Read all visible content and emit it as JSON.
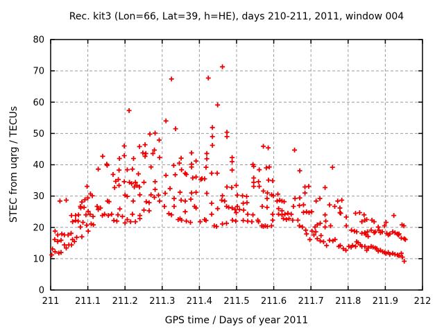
{
  "window": {
    "title": "Rec. kit3 (Lon=66, Lat=39, h=HE), days 210-211, 2011, window 004"
  },
  "chart_data": {
    "type": "scatter",
    "title": "Rec. kit3 (Lon=66, Lat=39, h=HE), days 210-211, 2011, window 004",
    "xlabel": "GPS time / Days of year 2011",
    "ylabel": "STEC from uqrg / TECUs",
    "xlim": [
      211,
      212
    ],
    "ylim": [
      0,
      80
    ],
    "xticks": [
      211,
      211.1,
      211.2,
      211.3,
      211.4,
      211.5,
      211.6,
      211.7,
      211.8,
      211.9,
      212
    ],
    "xtick_labels": [
      "211",
      "211.1",
      "211.2",
      "211.3",
      "211.4",
      "211.5",
      "211.6",
      "211.7",
      "211.8",
      "211.9",
      "212"
    ],
    "yticks": [
      0,
      10,
      20,
      30,
      40,
      50,
      60,
      70,
      80
    ],
    "ytick_labels": [
      "0",
      "10",
      "20",
      "30",
      "40",
      "50",
      "60",
      "70",
      "80"
    ],
    "grid": true,
    "legend": "none",
    "marker": "plus",
    "marker_color": "#ee0000",
    "marker_size": 7,
    "grid_color": "#9c9c9c",
    "frame_color": "#000000",
    "background": "#ffffff",
    "points": [
      [
        211.211,
        57.3
      ],
      [
        211.198,
        46.0
      ],
      [
        211.239,
        45.8
      ],
      [
        211.14,
        42.7
      ],
      [
        211.185,
        42.0
      ],
      [
        211.198,
        42.9
      ],
      [
        211.223,
        42.0
      ],
      [
        211.248,
        43.8
      ],
      [
        211.151,
        40.2
      ],
      [
        211.128,
        38.6
      ],
      [
        211.152,
        39.8
      ],
      [
        211.168,
        36.9
      ],
      [
        211.184,
        38.3
      ],
      [
        211.198,
        34.6
      ],
      [
        211.206,
        38.4
      ],
      [
        211.22,
        38.6
      ],
      [
        211.236,
        37.1
      ],
      [
        211.239,
        32.9
      ],
      [
        211.098,
        33.1
      ],
      [
        211.025,
        28.4
      ],
      [
        211.042,
        28.7
      ],
      [
        211.084,
        28.1
      ],
      [
        211.092,
        28.8
      ],
      [
        211.08,
        26.7
      ],
      [
        211.1,
        29.4
      ],
      [
        211.107,
        30.7
      ],
      [
        211.112,
        30.1
      ],
      [
        211.153,
        28.4
      ],
      [
        211.157,
        28.2
      ],
      [
        211.172,
        32.7
      ],
      [
        211.175,
        34.7
      ],
      [
        211.182,
        35.3
      ],
      [
        211.184,
        33.4
      ],
      [
        211.2,
        30.3
      ],
      [
        211.206,
        29.9
      ],
      [
        211.212,
        34.4
      ],
      [
        211.218,
        34.0
      ],
      [
        211.225,
        32.9
      ],
      [
        211.228,
        34.4
      ],
      [
        211.232,
        33.4
      ],
      [
        211.222,
        28.4
      ],
      [
        211.24,
        30.4
      ],
      [
        211.081,
        26.2
      ],
      [
        211.09,
        26.4
      ],
      [
        211.056,
        23.8
      ],
      [
        211.067,
        23.8
      ],
      [
        211.075,
        24.0
      ],
      [
        211.095,
        24.0
      ],
      [
        211.101,
        25.1
      ],
      [
        211.106,
        24.2
      ],
      [
        211.114,
        23.5
      ],
      [
        211.125,
        26.7
      ],
      [
        211.128,
        25.7
      ],
      [
        211.134,
        26.2
      ],
      [
        211.139,
        23.8
      ],
      [
        211.145,
        24.2
      ],
      [
        211.155,
        23.8
      ],
      [
        211.164,
        24.2
      ],
      [
        211.17,
        22.2
      ],
      [
        211.178,
        22.0
      ],
      [
        211.181,
        24.0
      ],
      [
        211.186,
        25.9
      ],
      [
        211.193,
        23.5
      ],
      [
        211.2,
        21.4
      ],
      [
        211.206,
        22.5
      ],
      [
        211.215,
        21.8
      ],
      [
        211.22,
        24.2
      ],
      [
        211.228,
        21.8
      ],
      [
        211.24,
        23.8
      ],
      [
        211.24,
        22.8
      ],
      [
        211.059,
        21.8
      ],
      [
        211.067,
        22.2
      ],
      [
        211.074,
        22.0
      ],
      [
        211.08,
        20.1
      ],
      [
        211.087,
        21.6
      ],
      [
        211.097,
        20.7
      ],
      [
        211.101,
        18.8
      ],
      [
        211.109,
        21.1
      ],
      [
        211.115,
        20.8
      ],
      [
        211.012,
        18.8
      ],
      [
        211.019,
        17.6
      ],
      [
        211.03,
        17.9
      ],
      [
        211.037,
        17.6
      ],
      [
        211.047,
        17.6
      ],
      [
        211.055,
        18.1
      ],
      [
        211.059,
        16.1
      ],
      [
        211.064,
        15.5
      ],
      [
        211.07,
        16.8
      ],
      [
        211.084,
        17.0
      ],
      [
        211.011,
        16.1
      ],
      [
        211.019,
        15.5
      ],
      [
        211.028,
        15.9
      ],
      [
        211.037,
        14.4
      ],
      [
        211.042,
        13.4
      ],
      [
        211.049,
        14.4
      ],
      [
        211.056,
        14.4
      ],
      [
        211.005,
        13.1
      ],
      [
        211.012,
        12.2
      ],
      [
        211.022,
        11.8
      ],
      [
        211.028,
        12.0
      ],
      [
        211.003,
        11.2
      ],
      [
        211.462,
        71.3
      ],
      [
        211.325,
        67.4
      ],
      [
        211.424,
        67.7
      ],
      [
        211.449,
        59.1
      ],
      [
        211.31,
        54.0
      ],
      [
        211.336,
        51.5
      ],
      [
        211.267,
        49.8
      ],
      [
        211.281,
        50.1
      ],
      [
        211.292,
        47.9
      ],
      [
        211.435,
        51.9
      ],
      [
        211.435,
        49.0
      ],
      [
        211.474,
        50.4
      ],
      [
        211.474,
        49.0
      ],
      [
        211.435,
        46.2
      ],
      [
        211.254,
        46.4
      ],
      [
        211.256,
        43.6
      ],
      [
        211.279,
        44.7
      ],
      [
        211.275,
        43.6
      ],
      [
        211.254,
        42.7
      ],
      [
        211.293,
        42.3
      ],
      [
        211.351,
        42.1
      ],
      [
        211.379,
        43.8
      ],
      [
        211.391,
        41.2
      ],
      [
        211.42,
        43.6
      ],
      [
        211.42,
        41.9
      ],
      [
        211.488,
        42.3
      ],
      [
        211.488,
        41.0
      ],
      [
        211.346,
        40.5
      ],
      [
        211.379,
        40.2
      ],
      [
        211.572,
        45.9
      ],
      [
        211.585,
        45.4
      ],
      [
        211.656,
        44.7
      ],
      [
        211.544,
        40.1
      ],
      [
        211.27,
        39.3
      ],
      [
        211.31,
        36.6
      ],
      [
        211.331,
        39.8
      ],
      [
        211.335,
        36.8
      ],
      [
        211.352,
        38.4
      ],
      [
        211.362,
        37.3
      ],
      [
        211.365,
        36.9
      ],
      [
        211.379,
        39.3
      ],
      [
        211.382,
        35.8
      ],
      [
        211.391,
        36.1
      ],
      [
        211.404,
        35.3
      ],
      [
        211.407,
        35.6
      ],
      [
        211.414,
        35.5
      ],
      [
        211.418,
        39.2
      ],
      [
        211.433,
        37.3
      ],
      [
        211.448,
        37.3
      ],
      [
        211.488,
        38.3
      ],
      [
        211.499,
        33.4
      ],
      [
        211.251,
        34.4
      ],
      [
        211.281,
        34.6
      ],
      [
        211.281,
        32.1
      ],
      [
        211.27,
        30.4
      ],
      [
        211.279,
        29.6
      ],
      [
        211.257,
        28.2
      ],
      [
        211.265,
        27.9
      ],
      [
        211.251,
        25.5
      ],
      [
        211.265,
        25.3
      ],
      [
        211.29,
        30.3
      ],
      [
        211.293,
        28.4
      ],
      [
        211.308,
        30.9
      ],
      [
        211.321,
        32.4
      ],
      [
        211.348,
        31.2
      ],
      [
        211.332,
        29.2
      ],
      [
        211.351,
        28.7
      ],
      [
        211.362,
        28.4
      ],
      [
        211.332,
        26.7
      ],
      [
        211.306,
        26.7
      ],
      [
        211.318,
        24.4
      ],
      [
        211.325,
        24.0
      ],
      [
        211.348,
        22.8
      ],
      [
        211.343,
        22.5
      ],
      [
        211.352,
        22.3
      ],
      [
        211.365,
        22.0
      ],
      [
        211.362,
        25.0
      ],
      [
        211.379,
        31.0
      ],
      [
        211.391,
        31.2
      ],
      [
        211.377,
        29.0
      ],
      [
        211.387,
        26.7
      ],
      [
        211.391,
        26.2
      ],
      [
        211.376,
        21.6
      ],
      [
        211.402,
        21.8
      ],
      [
        211.414,
        22.5
      ],
      [
        211.418,
        22.2
      ],
      [
        211.42,
        30.9
      ],
      [
        211.433,
        27.7
      ],
      [
        211.449,
        26.0
      ],
      [
        211.433,
        24.2
      ],
      [
        211.44,
        20.5
      ],
      [
        211.446,
        20.3
      ],
      [
        211.462,
        21.1
      ],
      [
        211.473,
        21.3
      ],
      [
        211.46,
        28.7
      ],
      [
        211.468,
        28.4
      ],
      [
        211.473,
        26.7
      ],
      [
        211.479,
        26.4
      ],
      [
        211.488,
        26.2
      ],
      [
        211.496,
        25.7
      ],
      [
        211.499,
        24.7
      ],
      [
        211.489,
        22.3
      ],
      [
        211.498,
        22.0
      ],
      [
        211.474,
        32.9
      ],
      [
        211.487,
        32.7
      ],
      [
        211.462,
        30.1
      ],
      [
        211.546,
        39.5
      ],
      [
        211.561,
        38.4
      ],
      [
        211.58,
        39.0
      ],
      [
        211.588,
        39.3
      ],
      [
        211.67,
        38.1
      ],
      [
        211.546,
        35.8
      ],
      [
        211.546,
        34.4
      ],
      [
        211.559,
        34.6
      ],
      [
        211.561,
        33.1
      ],
      [
        211.546,
        33.1
      ],
      [
        211.586,
        35.1
      ],
      [
        211.597,
        34.9
      ],
      [
        211.572,
        31.6
      ],
      [
        211.583,
        31.0
      ],
      [
        211.502,
        30.3
      ],
      [
        211.502,
        26.7
      ],
      [
        211.516,
        30.1
      ],
      [
        211.527,
        29.9
      ],
      [
        211.528,
        27.9
      ],
      [
        211.518,
        27.7
      ],
      [
        211.508,
        25.7
      ],
      [
        211.519,
        25.5
      ],
      [
        211.53,
        24.2
      ],
      [
        211.518,
        22.2
      ],
      [
        211.53,
        22.0
      ],
      [
        211.544,
        24.0
      ],
      [
        211.541,
        21.8
      ],
      [
        211.557,
        22.3
      ],
      [
        211.559,
        21.8
      ],
      [
        211.568,
        20.5
      ],
      [
        211.572,
        20.3
      ],
      [
        211.577,
        20.5
      ],
      [
        211.583,
        20.3
      ],
      [
        211.594,
        20.5
      ],
      [
        211.597,
        22.3
      ],
      [
        211.597,
        24.2
      ],
      [
        211.569,
        26.7
      ],
      [
        211.582,
        26.4
      ],
      [
        211.582,
        29.2
      ],
      [
        211.594,
        30.4
      ],
      [
        211.599,
        30.1
      ],
      [
        211.611,
        30.6
      ],
      [
        211.609,
        28.4
      ],
      [
        211.616,
        28.7
      ],
      [
        211.622,
        28.4
      ],
      [
        211.628,
        28.2
      ],
      [
        211.613,
        26.0
      ],
      [
        211.622,
        25.3
      ],
      [
        211.613,
        24.2
      ],
      [
        211.622,
        24.0
      ],
      [
        211.63,
        24.2
      ],
      [
        211.638,
        24.5
      ],
      [
        211.647,
        24.2
      ],
      [
        211.626,
        22.8
      ],
      [
        211.634,
        22.5
      ],
      [
        211.641,
        22.8
      ],
      [
        211.651,
        22.3
      ],
      [
        211.665,
        22.3
      ],
      [
        211.653,
        26.7
      ],
      [
        211.657,
        29.2
      ],
      [
        211.67,
        29.4
      ],
      [
        211.669,
        27.0
      ],
      [
        211.68,
        27.2
      ],
      [
        211.684,
        32.9
      ],
      [
        211.694,
        33.1
      ],
      [
        211.684,
        31.0
      ],
      [
        211.68,
        24.8
      ],
      [
        211.688,
        25.0
      ],
      [
        211.695,
        24.7
      ],
      [
        211.702,
        25.0
      ],
      [
        211.669,
        20.5
      ],
      [
        211.677,
        20.1
      ],
      [
        211.686,
        19.1
      ],
      [
        211.688,
        17.9
      ],
      [
        211.697,
        16.1
      ],
      [
        211.703,
        18.8
      ],
      [
        211.713,
        18.6
      ],
      [
        211.711,
        20.1
      ],
      [
        211.717,
        20.8
      ],
      [
        211.725,
        21.3
      ],
      [
        211.714,
        28.4
      ],
      [
        211.724,
        29.2
      ],
      [
        211.738,
        32.7
      ],
      [
        211.75,
        27.2
      ],
      [
        211.738,
        24.0
      ],
      [
        211.74,
        22.0
      ],
      [
        211.738,
        20.1
      ],
      [
        211.717,
        16.4
      ],
      [
        211.725,
        15.7
      ],
      [
        211.734,
        15.4
      ],
      [
        211.742,
        14.2
      ],
      [
        211.75,
        15.9
      ],
      [
        211.727,
        17.4
      ],
      [
        211.708,
        17.6
      ],
      [
        211.758,
        39.2
      ],
      [
        211.772,
        28.4
      ],
      [
        211.783,
        28.7
      ],
      [
        211.764,
        26.7
      ],
      [
        211.778,
        26.2
      ],
      [
        211.778,
        24.7
      ],
      [
        211.78,
        24.5
      ],
      [
        211.795,
        23.3
      ],
      [
        211.82,
        24.5
      ],
      [
        211.831,
        24.7
      ],
      [
        211.843,
        24.0
      ],
      [
        211.85,
        22.5
      ],
      [
        211.864,
        22.3
      ],
      [
        211.87,
        21.8
      ],
      [
        211.837,
        21.8
      ],
      [
        211.845,
        22.3
      ],
      [
        211.923,
        23.8
      ],
      [
        211.753,
        20.5
      ],
      [
        211.795,
        20.5
      ],
      [
        211.809,
        19.1
      ],
      [
        211.817,
        18.8
      ],
      [
        211.823,
        18.6
      ],
      [
        211.837,
        18.1
      ],
      [
        211.845,
        18.3
      ],
      [
        211.852,
        18.6
      ],
      [
        211.848,
        17.6
      ],
      [
        211.854,
        17.1
      ],
      [
        211.862,
        19.1
      ],
      [
        211.873,
        18.6
      ],
      [
        211.87,
        18.3
      ],
      [
        211.881,
        20.1
      ],
      [
        211.883,
        19.1
      ],
      [
        211.887,
        18.3
      ],
      [
        211.892,
        18.6
      ],
      [
        211.898,
        20.5
      ],
      [
        211.902,
        21.6
      ],
      [
        211.904,
        18.1
      ],
      [
        211.908,
        17.6
      ],
      [
        211.912,
        17.9
      ],
      [
        211.92,
        18.6
      ],
      [
        211.926,
        18.3
      ],
      [
        211.933,
        17.9
      ],
      [
        211.937,
        17.9
      ],
      [
        211.935,
        17.6
      ],
      [
        211.943,
        16.6
      ],
      [
        211.951,
        16.4
      ],
      [
        211.954,
        16.1
      ],
      [
        211.95,
        20.5
      ],
      [
        211.945,
        20.8
      ],
      [
        211.765,
        16.1
      ],
      [
        211.759,
        15.7
      ],
      [
        211.779,
        14.2
      ],
      [
        211.775,
        13.9
      ],
      [
        211.787,
        13.2
      ],
      [
        211.794,
        12.7
      ],
      [
        211.802,
        13.9
      ],
      [
        211.808,
        13.7
      ],
      [
        211.812,
        14.2
      ],
      [
        211.82,
        13.9
      ],
      [
        211.823,
        15.4
      ],
      [
        211.827,
        15.1
      ],
      [
        211.833,
        14.4
      ],
      [
        211.837,
        13.9
      ],
      [
        211.845,
        13.9
      ],
      [
        211.85,
        12.7
      ],
      [
        211.854,
        13.4
      ],
      [
        211.862,
        13.9
      ],
      [
        211.867,
        13.7
      ],
      [
        211.873,
        13.4
      ],
      [
        211.877,
        13.2
      ],
      [
        211.881,
        12.4
      ],
      [
        211.887,
        12.7
      ],
      [
        211.893,
        12.2
      ],
      [
        211.898,
        12.0
      ],
      [
        211.902,
        11.7
      ],
      [
        211.908,
        12.0
      ],
      [
        211.912,
        11.4
      ],
      [
        211.92,
        11.7
      ],
      [
        211.926,
        11.4
      ],
      [
        211.933,
        11.2
      ],
      [
        211.937,
        10.9
      ],
      [
        211.943,
        11.7
      ],
      [
        211.946,
        10.5
      ],
      [
        211.951,
        9.2
      ]
    ]
  }
}
